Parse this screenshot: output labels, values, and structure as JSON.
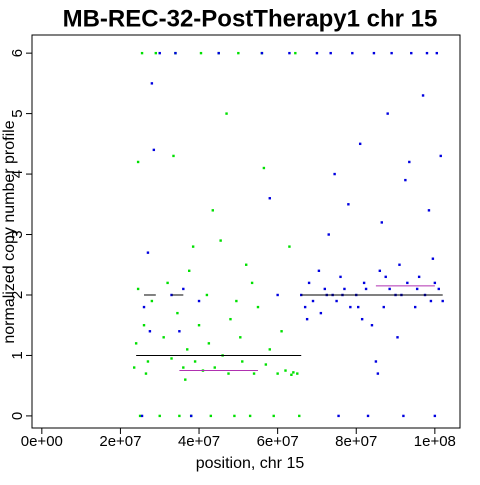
{
  "chart_data": {
    "type": "scatter",
    "title": "MB-REC-32-PostTherapy1 chr 15",
    "x_label": "position, chr 15",
    "y_label": "normalized copy number profile",
    "xlim": [
      -2500000.0,
      106400000.0
    ],
    "ylim": [
      -0.2,
      6.3
    ],
    "xticks": [
      {
        "value": 0,
        "label": "0e+00"
      },
      {
        "value": 20000000.0,
        "label": "2e+07"
      },
      {
        "value": 40000000.0,
        "label": "4e+07"
      },
      {
        "value": 60000000.0,
        "label": "6e+07"
      },
      {
        "value": 80000000.0,
        "label": "8e+07"
      },
      {
        "value": 100000000.0,
        "label": "1e+08"
      }
    ],
    "yticks": [
      0,
      1,
      2,
      3,
      4,
      5,
      6
    ],
    "series": [
      {
        "color": "#00e000",
        "x": [
          23500000.0,
          24000000.0,
          24500000.0,
          25000000.0,
          25500000.0,
          26000000.0,
          27000000.0,
          28000000.0,
          29000000.0,
          30000000.0,
          31000000.0,
          32000000.0,
          33000000.0,
          34000000.0,
          34500000.0,
          35000000.0,
          36000000.0,
          37000000.0,
          37500000.0,
          38000000.0,
          39000000.0,
          40000000.0,
          40500000.0,
          41000000.0,
          42000000.0,
          42500000.0,
          43000000.0,
          44000000.0,
          45000000.0,
          45500000.0,
          46000000.0,
          47000000.0,
          47500000.0,
          48000000.0,
          49000000.0,
          50000000.0,
          50500000.0,
          51000000.0,
          52000000.0,
          53000000.0,
          54000000.0,
          55000000.0,
          56000000.0,
          56500000.0,
          57000000.0,
          58000000.0,
          59000000.0,
          60000000.0,
          61000000.0,
          62000000.0,
          63000000.0,
          63500000.0,
          64000000.0,
          64500000.0,
          65000000.0,
          65500000.0,
          43500000.0,
          33500000.0,
          24500000.0,
          38500000.0,
          53500000.0,
          49500000.0,
          36500000.0,
          26500000.0
        ],
        "values": [
          0.8,
          1.2,
          2.1,
          0,
          6,
          1.5,
          0.9,
          1.9,
          6,
          0,
          1.3,
          2.2,
          0.95,
          6,
          1.7,
          0,
          0.8,
          1.1,
          2.4,
          0,
          0.9,
          1.5,
          6,
          0.75,
          2.0,
          1.2,
          0,
          0.8,
          6,
          2.9,
          1.0,
          5.0,
          0.7,
          1.6,
          0,
          6,
          1.3,
          0.9,
          2.5,
          0,
          0.7,
          1.8,
          6,
          4.1,
          0.85,
          1.1,
          0,
          0.7,
          1.4,
          0.75,
          2.8,
          0.68,
          0.72,
          6,
          0.7,
          0,
          3.4,
          4.3,
          4.2,
          2.8,
          2.2,
          1.9,
          0.6,
          0.7
        ]
      },
      {
        "color": "#0000e0",
        "x": [
          25500000.0,
          26000000.0,
          27000000.0,
          27500000.0,
          28000000.0,
          28500000.0,
          30000000.0,
          33000000.0,
          34000000.0,
          35000000.0,
          36000000.0,
          38000000.0,
          40000000.0,
          45000000.0,
          56000000.0,
          58000000.0,
          60000000.0,
          63000000.0,
          66000000.0,
          67000000.0,
          68000000.0,
          69000000.0,
          70000000.0,
          70500000.0,
          71000000.0,
          72000000.0,
          73000000.0,
          73500000.0,
          74000000.0,
          75000000.0,
          75500000.0,
          76000000.0,
          77000000.0,
          78000000.0,
          78500000.0,
          79000000.0,
          80000000.0,
          81000000.0,
          81500000.0,
          82000000.0,
          83000000.0,
          84000000.0,
          84500000.0,
          85000000.0,
          85500000.0,
          86000000.0,
          87000000.0,
          88000000.0,
          88500000.0,
          89000000.0,
          90000000.0,
          90500000.0,
          91000000.0,
          92000000.0,
          92500000.0,
          93000000.0,
          94000000.0,
          95000000.0,
          96000000.0,
          97000000.0,
          97500000.0,
          98000000.0,
          98500000.0,
          99000000.0,
          99500000.0,
          100000000.0,
          100500000.0,
          101000000.0,
          101500000.0,
          102000000.0,
          67500000.0,
          72500000.0,
          76500000.0,
          80500000.0,
          82500000.0,
          87500000.0,
          91500000.0,
          95500000.0,
          100000000.0,
          74500000.0,
          86500000.0,
          93500000.0
        ],
        "values": [
          0,
          1.8,
          2.7,
          1.4,
          5.5,
          4.4,
          6,
          2.0,
          6,
          1.4,
          2.1,
          0,
          1.9,
          6,
          6,
          3.6,
          2.0,
          6,
          2.0,
          1.8,
          2.2,
          1.9,
          6,
          2.4,
          1.7,
          2.1,
          3.0,
          6,
          2.0,
          1.9,
          0,
          2.3,
          2.1,
          3.5,
          1.8,
          6,
          2.0,
          4.5,
          1.6,
          2.2,
          0,
          1.5,
          6,
          0.9,
          0.7,
          2.4,
          1.8,
          5.0,
          2.1,
          6,
          2.0,
          1.3,
          2.5,
          0,
          3.9,
          2.2,
          6,
          1.8,
          2.3,
          5.3,
          2.0,
          6,
          3.4,
          1.9,
          2.6,
          0,
          6,
          2.1,
          4.3,
          1.9,
          1.6,
          2.0,
          2.0,
          1.8,
          2.1,
          2.3,
          2.0,
          2.1,
          2.2,
          4.0,
          3.2,
          4.2
        ]
      }
    ],
    "segments": [
      {
        "x0": 24000000.0,
        "x1": 66000000.0,
        "y": 1.0,
        "color": "#000000"
      },
      {
        "x0": 66000000.0,
        "x1": 102000000.0,
        "y": 2.0,
        "color": "#000000"
      },
      {
        "x0": 26000000.0,
        "x1": 29000000.0,
        "y": 2.0,
        "color": "#000000"
      },
      {
        "x0": 33000000.0,
        "x1": 36000000.0,
        "y": 2.0,
        "color": "#000000"
      },
      {
        "x0": 35000000.0,
        "x1": 55000000.0,
        "y": 0.75,
        "color": "#b030b0"
      },
      {
        "x0": 85000000.0,
        "x1": 100000000.0,
        "y": 2.15,
        "color": "#b030b0"
      }
    ]
  }
}
